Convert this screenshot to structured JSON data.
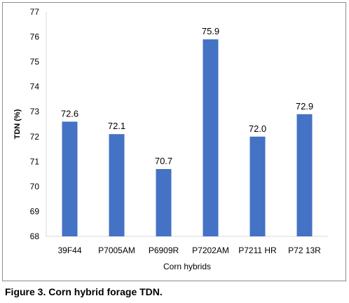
{
  "chart_data": {
    "type": "bar",
    "categories": [
      "39F44",
      "P7005AM",
      "P6909R",
      "P7202AM",
      "P7211HR",
      "P7213R"
    ],
    "category_labels": [
      "39F44",
      "P7005AM",
      "P6909R",
      "P7202AM",
      "P7211 HR",
      "P72 13R"
    ],
    "values": [
      72.6,
      72.1,
      70.7,
      75.9,
      72.0,
      72.9
    ],
    "data_labels": [
      "72.6",
      "72.1",
      "70.7",
      "75.9",
      "72.0",
      "72.9"
    ],
    "title": "",
    "xlabel": "Corn hybrids",
    "ylabel": "TDN (%)",
    "ylim": [
      68,
      77
    ],
    "yticks": [
      68,
      69,
      70,
      71,
      72,
      73,
      74,
      75,
      76,
      77
    ],
    "grid": false,
    "legend": "none",
    "bar_color": "#4472c4"
  },
  "caption": "Figure 3. Corn hybrid forage TDN."
}
